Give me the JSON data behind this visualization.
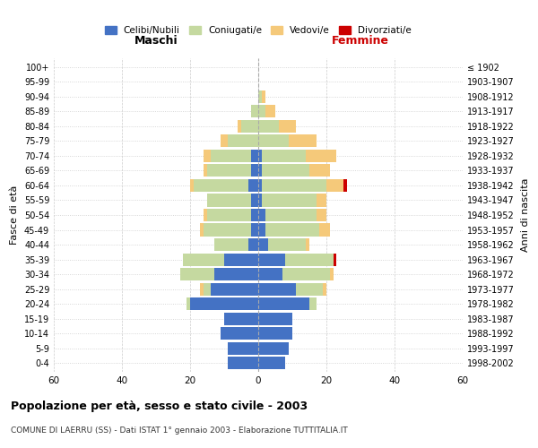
{
  "age_groups": [
    "0-4",
    "5-9",
    "10-14",
    "15-19",
    "20-24",
    "25-29",
    "30-34",
    "35-39",
    "40-44",
    "45-49",
    "50-54",
    "55-59",
    "60-64",
    "65-69",
    "70-74",
    "75-79",
    "80-84",
    "85-89",
    "90-94",
    "95-99",
    "100+"
  ],
  "birth_years": [
    "1998-2002",
    "1993-1997",
    "1988-1992",
    "1983-1987",
    "1978-1982",
    "1973-1977",
    "1968-1972",
    "1963-1967",
    "1958-1962",
    "1953-1957",
    "1948-1952",
    "1943-1947",
    "1938-1942",
    "1933-1937",
    "1928-1932",
    "1923-1927",
    "1918-1922",
    "1913-1917",
    "1908-1912",
    "1903-1907",
    "≤ 1902"
  ],
  "male": {
    "celibe": [
      9,
      9,
      11,
      10,
      20,
      14,
      13,
      10,
      3,
      2,
      2,
      2,
      3,
      2,
      2,
      0,
      0,
      0,
      0,
      0,
      0
    ],
    "coniugato": [
      0,
      0,
      0,
      0,
      1,
      2,
      10,
      12,
      10,
      14,
      13,
      13,
      16,
      13,
      12,
      9,
      5,
      2,
      0,
      0,
      0
    ],
    "vedovo": [
      0,
      0,
      0,
      0,
      0,
      1,
      0,
      0,
      0,
      1,
      1,
      0,
      1,
      1,
      2,
      2,
      1,
      0,
      0,
      0,
      0
    ],
    "divorziato": [
      0,
      0,
      0,
      0,
      0,
      0,
      0,
      0,
      0,
      0,
      0,
      0,
      0,
      0,
      0,
      0,
      0,
      0,
      0,
      0,
      0
    ]
  },
  "female": {
    "nubile": [
      8,
      9,
      10,
      10,
      15,
      11,
      7,
      8,
      3,
      2,
      2,
      1,
      1,
      1,
      1,
      0,
      0,
      0,
      0,
      0,
      0
    ],
    "coniugata": [
      0,
      0,
      0,
      0,
      2,
      8,
      14,
      14,
      11,
      16,
      15,
      16,
      19,
      14,
      13,
      9,
      6,
      2,
      1,
      0,
      0
    ],
    "vedova": [
      0,
      0,
      0,
      0,
      0,
      1,
      1,
      0,
      1,
      3,
      3,
      3,
      5,
      6,
      9,
      8,
      5,
      3,
      1,
      0,
      0
    ],
    "divorziata": [
      0,
      0,
      0,
      0,
      0,
      0,
      0,
      1,
      0,
      0,
      0,
      0,
      1,
      0,
      0,
      0,
      0,
      0,
      0,
      0,
      0
    ]
  },
  "colors": {
    "celibe": "#4472c4",
    "coniugato": "#c5d9a0",
    "vedovo": "#f5c97a",
    "divorziato": "#cc0000"
  },
  "xlim": 60,
  "title": "Popolazione per età, sesso e stato civile - 2003",
  "subtitle": "COMUNE DI LAERRU (SS) - Dati ISTAT 1° gennaio 2003 - Elaborazione TUTTITALIA.IT",
  "ylabel_left": "Fasce di età",
  "ylabel_right": "Anni di nascita",
  "xlabel_left": "Maschi",
  "xlabel_right": "Femmine",
  "legend_labels": [
    "Celibi/Nubili",
    "Coniugati/e",
    "Vedovi/e",
    "Divorziati/e"
  ],
  "bg_color": "#ffffff",
  "grid_color": "#cccccc",
  "femmine_color": "#cc0000"
}
